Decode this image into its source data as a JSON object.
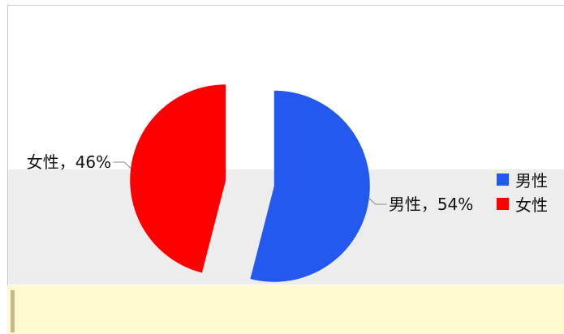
{
  "chart_data": {
    "type": "pie",
    "title": "",
    "slices": [
      {
        "label": "男性",
        "value": 54,
        "data_label": "男性，54%",
        "color": "#2459f0"
      },
      {
        "label": "女性",
        "value": 46,
        "data_label": "女性，46%",
        "color": "#ff0000"
      }
    ],
    "exploded": true,
    "legend_position": "right"
  },
  "legend": {
    "items": [
      {
        "label": "男性",
        "color": "#2459f0"
      },
      {
        "label": "女性",
        "color": "#ff0000"
      }
    ]
  }
}
